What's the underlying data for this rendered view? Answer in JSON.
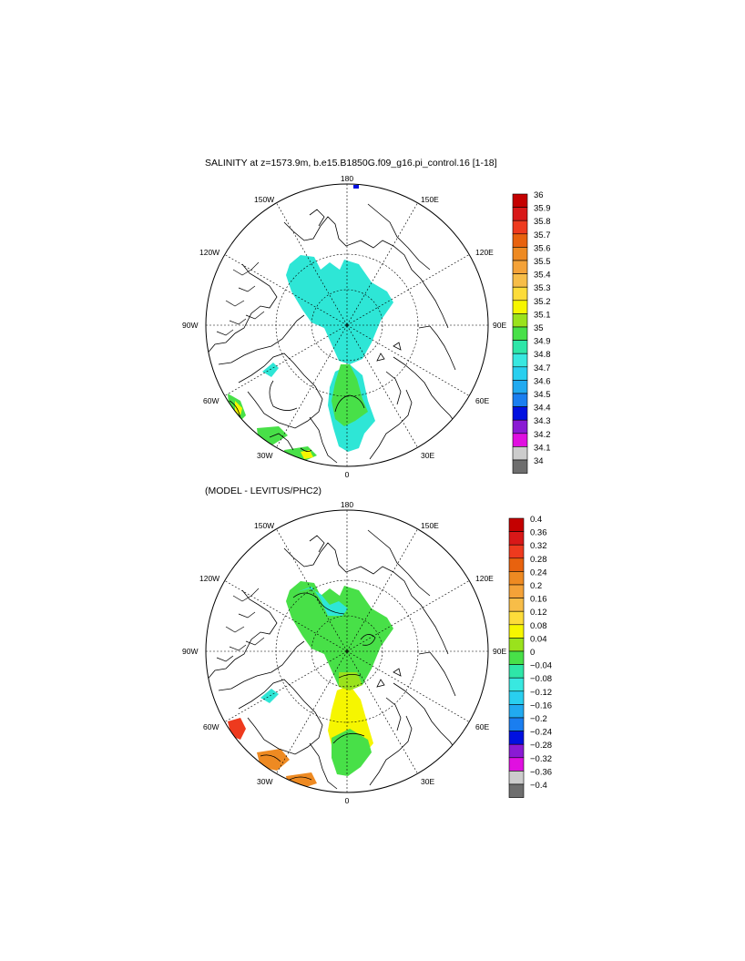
{
  "panel1": {
    "title": "SALINITY at z=1573.9m, b.e15.B1850G.f09_g16.pi_control.16 [1-18]",
    "lon_labels": {
      "top": "180",
      "bottom": "0",
      "left": "90W",
      "right": "90E",
      "nw1": "150W",
      "nw2": "120W",
      "ne1": "150E",
      "ne2": "120E",
      "sw1": "60W",
      "sw2": "30W",
      "se1": "60E",
      "se2": "30E"
    },
    "colorbar": {
      "labels": [
        "36",
        "35.9",
        "35.8",
        "35.7",
        "35.6",
        "35.5",
        "35.4",
        "35.3",
        "35.2",
        "35.1",
        "35",
        "34.9",
        "34.8",
        "34.7",
        "34.6",
        "34.5",
        "34.4",
        "34.3",
        "34.2",
        "34.1",
        "34"
      ],
      "colors": [
        "#c40000",
        "#d81818",
        "#ee3a1e",
        "#e8620e",
        "#ee8a22",
        "#f4a238",
        "#f7bd48",
        "#fddc3a",
        "#f6f600",
        "#9ae21c",
        "#48e048",
        "#2ee6a8",
        "#38e8e0",
        "#29cfef",
        "#21aaf0",
        "#1a7ef0",
        "#0010e0",
        "#8a1ad4",
        "#e010e0",
        "#cccccc",
        "#6e6e6e"
      ]
    }
  },
  "panel2": {
    "title": "(MODEL - LEVITUS/PHC2)",
    "lon_labels": {
      "top": "180",
      "bottom": "0",
      "left": "90W",
      "right": "90E",
      "nw1": "150W",
      "nw2": "120W",
      "ne1": "150E",
      "ne2": "120E",
      "sw1": "60W",
      "sw2": "30W",
      "se1": "60E",
      "se2": "30E"
    },
    "colorbar": {
      "labels": [
        "0.4",
        "0.36",
        "0.32",
        "0.28",
        "0.24",
        "0.2",
        "0.16",
        "0.12",
        "0.08",
        "0.04",
        "0",
        "−0.04",
        "−0.08",
        "−0.12",
        "−0.16",
        "−0.2",
        "−0.24",
        "−0.28",
        "−0.32",
        "−0.36",
        "−0.4"
      ],
      "colors": [
        "#c40000",
        "#d81818",
        "#ee3a1e",
        "#e8620e",
        "#ee8a22",
        "#f4a238",
        "#f7bd48",
        "#fddc3a",
        "#f6f600",
        "#9ae21c",
        "#48e048",
        "#2ee6a8",
        "#38e8e0",
        "#29cfef",
        "#21aaf0",
        "#1a7ef0",
        "#0010e0",
        "#8a1ad4",
        "#e010e0",
        "#cccccc",
        "#6e6e6e"
      ]
    }
  }
}
